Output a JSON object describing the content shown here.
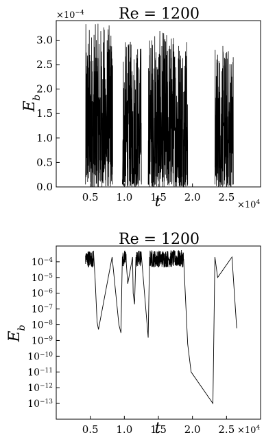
{
  "chart_data": [
    {
      "type": "line",
      "title": "Re = 1200",
      "xlabel": "t",
      "ylabel": "E_b",
      "x_multiplier": "×10^4",
      "y_multiplier": "×10^-4",
      "xlim": [
        0,
        3.0
      ],
      "ylim": [
        0,
        3.4
      ],
      "x_ticks": [
        0.5,
        1.0,
        1.5,
        2.0,
        2.5
      ],
      "x_tick_labels": [
        "0.5",
        "1.0",
        "1.5",
        "2.0",
        "2.5"
      ],
      "y_ticks": [
        0,
        0.5,
        1.0,
        1.5,
        2.0,
        2.5,
        3.0
      ],
      "y_tick_labels": [
        "0.0",
        "0.5",
        "1.0",
        "1.5",
        "2.0",
        "2.5",
        "3.0"
      ],
      "grid": false,
      "series": [
        {
          "line_color": "#000000",
          "bursts": [
            {
              "x_start": 0.43,
              "x_end": 0.83,
              "y_min": 0.0,
              "y_max": 3.35
            },
            {
              "x_start": 0.97,
              "x_end": 1.25,
              "y_min": 0.0,
              "y_max": 3.0
            },
            {
              "x_start": 1.35,
              "x_end": 1.93,
              "y_min": 0.0,
              "y_max": 3.2
            },
            {
              "x_start": 2.33,
              "x_end": 2.6,
              "y_min": 0.0,
              "y_max": 2.9
            }
          ]
        }
      ]
    },
    {
      "type": "line",
      "title": "Re = 1200",
      "xlabel": "t",
      "ylabel": "E_b",
      "x_multiplier": "×10^4",
      "y_scale": "log",
      "xlim": [
        0,
        3.0
      ],
      "ylim": [
        1e-14,
        0.001
      ],
      "x_ticks": [
        0.5,
        1.0,
        1.5,
        2.0,
        2.5
      ],
      "x_tick_labels": [
        "0.5",
        "1.0",
        "1.5",
        "2.0",
        "2.5"
      ],
      "y_ticks": [
        0.0001,
        1e-05,
        1e-06,
        1e-07,
        1e-08,
        1e-09,
        1e-10,
        1e-11,
        1e-12,
        1e-13
      ],
      "y_tick_labels": [
        "10^-4",
        "10^-5",
        "10^-6",
        "10^-7",
        "10^-8",
        "10^-9",
        "10^-10",
        "10^-11",
        "10^-12",
        "10^-13"
      ],
      "grid": false,
      "series": [
        {
          "line_color": "#000000",
          "x": [
            0.43,
            0.55,
            0.57,
            0.6,
            0.62,
            0.82,
            0.92,
            0.95,
            0.97,
            1.03,
            1.05,
            1.12,
            1.13,
            1.15,
            1.17,
            1.25,
            1.35,
            1.37,
            1.87,
            1.93,
            1.98,
            2.3,
            2.33,
            2.37,
            2.58,
            2.65
          ],
          "y": [
            0.00025,
            0.00025,
            1e-05,
            1.5e-08,
            5e-09,
            0.0002,
            1e-08,
            3e-09,
            0.0002,
            0.0002,
            4e-06,
            0.0002,
            1e-06,
            2e-07,
            0.0002,
            0.0002,
            1.5e-09,
            0.0002,
            0.0002,
            6e-10,
            1e-11,
            1e-13,
            0.0002,
            1e-05,
            0.0002,
            6e-09
          ]
        }
      ]
    }
  ]
}
